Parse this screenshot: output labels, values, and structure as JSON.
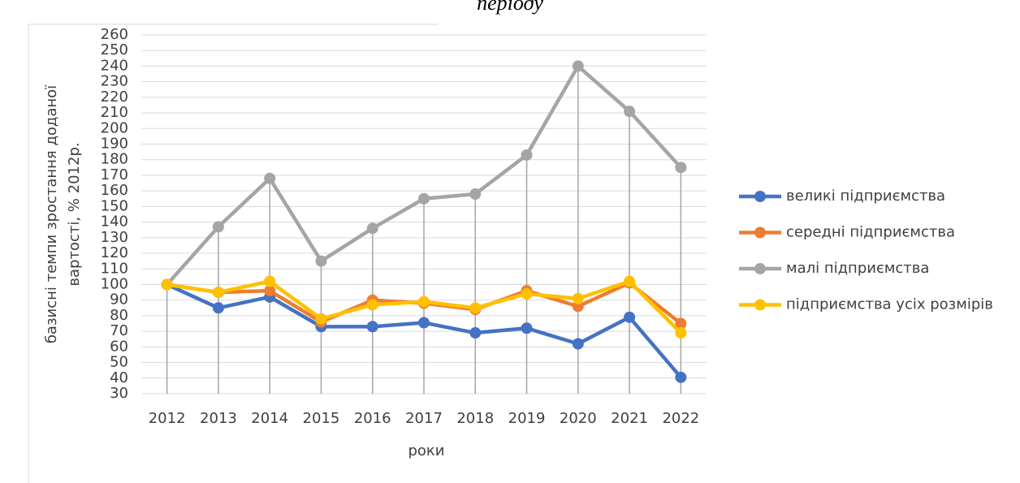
{
  "chart_data": {
    "type": "line",
    "title": "періоду",
    "xlabel": "роки",
    "ylabel": [
      "базисні темпи зростання доданої",
      "вартості, % 2012р."
    ],
    "categories": [
      "2012",
      "2013",
      "2014",
      "2015",
      "2016",
      "2017",
      "2018",
      "2019",
      "2020",
      "2021",
      "2022"
    ],
    "series": [
      {
        "name": "великі підприємства",
        "color": "#4472c4",
        "values": [
          100,
          85,
          92,
          73,
          73,
          75.5,
          69,
          72,
          62,
          79,
          40.5
        ]
      },
      {
        "name": "середні підприємства",
        "color": "#ed7d31",
        "values": [
          100,
          95,
          96,
          76,
          90,
          88,
          84,
          96,
          86,
          101,
          75
        ]
      },
      {
        "name": "малі підприємства",
        "color": "#a5a5a5",
        "values": [
          100,
          137,
          168,
          115,
          136,
          155,
          158,
          183,
          240,
          211,
          175
        ]
      },
      {
        "name": "підприємства усіх розмірів",
        "color": "#ffc000",
        "values": [
          100,
          95,
          102,
          78,
          87,
          89,
          85,
          94,
          91,
          102,
          69
        ]
      }
    ],
    "ylim": [
      30,
      260
    ],
    "yticks": [
      30,
      40,
      50,
      60,
      70,
      80,
      90,
      100,
      110,
      120,
      130,
      140,
      150,
      160,
      170,
      180,
      190,
      200,
      210,
      220,
      230,
      240,
      250,
      260
    ],
    "grid": true,
    "drop_lines": true,
    "legend": "right"
  }
}
